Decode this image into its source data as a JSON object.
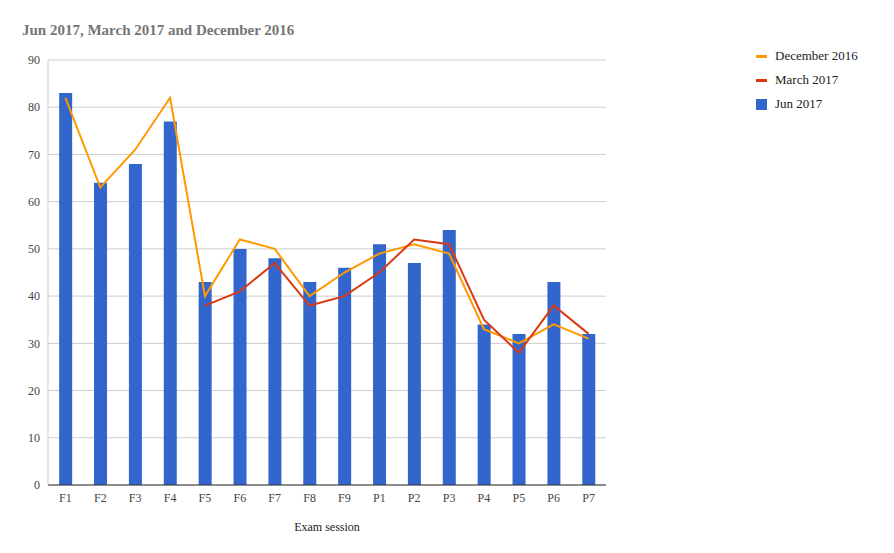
{
  "chart_data": {
    "type": "bar",
    "title": "Jun 2017, March 2017 and December 2016",
    "x_label": "Exam session",
    "categories": [
      "F1",
      "F2",
      "F3",
      "F4",
      "F5",
      "F6",
      "F7",
      "F8",
      "F9",
      "P1",
      "P2",
      "P3",
      "P4",
      "P5",
      "P6",
      "P7"
    ],
    "series": [
      {
        "name": "December 2016",
        "type": "line",
        "color": "#ff9900",
        "values": [
          82,
          63,
          71,
          82,
          40,
          52,
          50,
          40,
          45,
          49,
          51,
          49,
          33,
          30,
          34,
          31
        ]
      },
      {
        "name": "March 2017",
        "type": "line",
        "color": "#dc3912",
        "values": [
          null,
          null,
          null,
          null,
          38,
          41,
          47,
          38,
          40,
          45,
          52,
          51,
          35,
          28,
          38,
          32
        ]
      },
      {
        "name": "Jun 2017",
        "type": "bar",
        "color": "#3366cc",
        "values": [
          83,
          64,
          68,
          77,
          43,
          50,
          48,
          43,
          46,
          51,
          47,
          54,
          34,
          32,
          43,
          32
        ]
      }
    ],
    "ylim": [
      0,
      90
    ],
    "yticks": [
      0,
      10,
      20,
      30,
      40,
      50,
      60,
      70,
      80,
      90
    ],
    "grid": true,
    "legend": "right"
  }
}
